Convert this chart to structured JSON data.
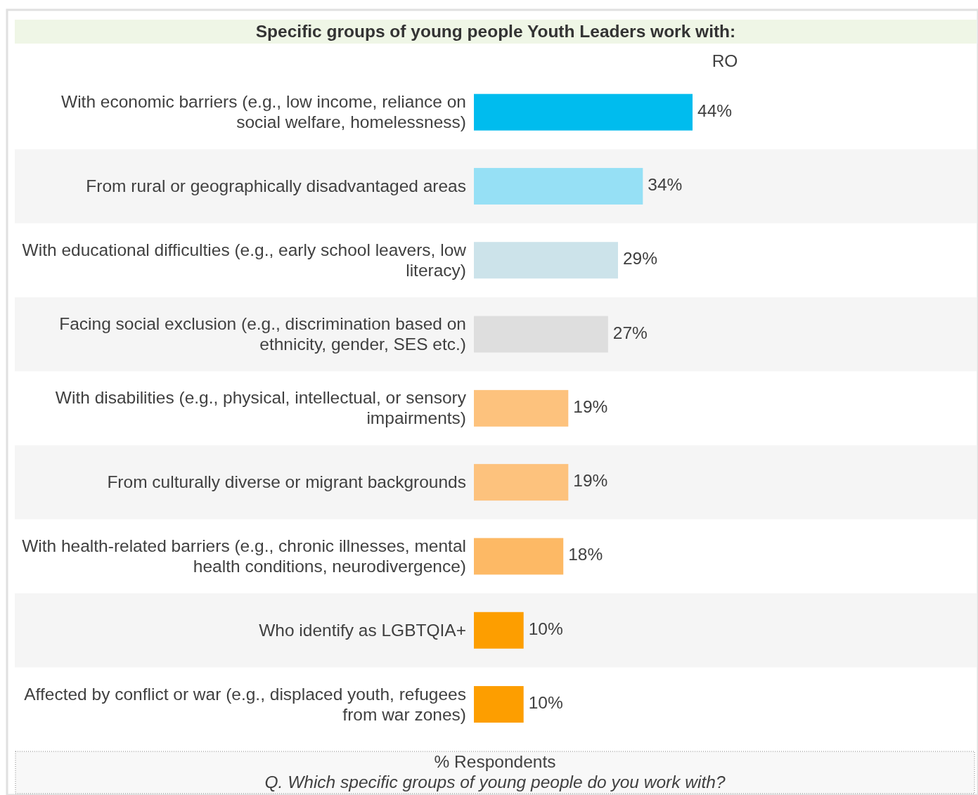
{
  "chart_data": {
    "type": "bar",
    "orientation": "horizontal",
    "title": "Specific groups of young people Youth Leaders work with:",
    "xlabel": "% Respondents",
    "annotations": [
      "Q. Which specific groups of young people do you work with?"
    ],
    "categories": [
      "With economic barriers (e.g., low income, reliance on social welfare, homelessness)",
      "From rural or geographically disadvantaged areas",
      "With educational difficulties (e.g., early school leavers, low literacy)",
      "Facing social exclusion (e.g., discrimination based on ethnicity, gender, SES etc.)",
      "With disabilities (e.g., physical, intellectual, or sensory impairments)",
      "From culturally diverse or migrant backgrounds",
      "With health-related barriers (e.g., chronic illnesses, mental health conditions, neurodivergence)",
      "Who identify as LGBTQIA+",
      "Affected by conflict or war (e.g., displaced youth, refugees from war zones)"
    ],
    "series": [
      {
        "name": "RO",
        "values": [
          44,
          34,
          29,
          27,
          19,
          19,
          18,
          10,
          10
        ],
        "value_labels": [
          "44%",
          "34%",
          "29%",
          "27%",
          "19%",
          "19%",
          "18%",
          "10%",
          "10%"
        ]
      }
    ],
    "colors": [
      "#00bcee",
      "#96e0f5",
      "#cce3ea",
      "#dedede",
      "#fdc27d",
      "#fdc27d",
      "#fdb965",
      "#fd9e00",
      "#fd9e00"
    ],
    "tick_labels": "y"
  }
}
